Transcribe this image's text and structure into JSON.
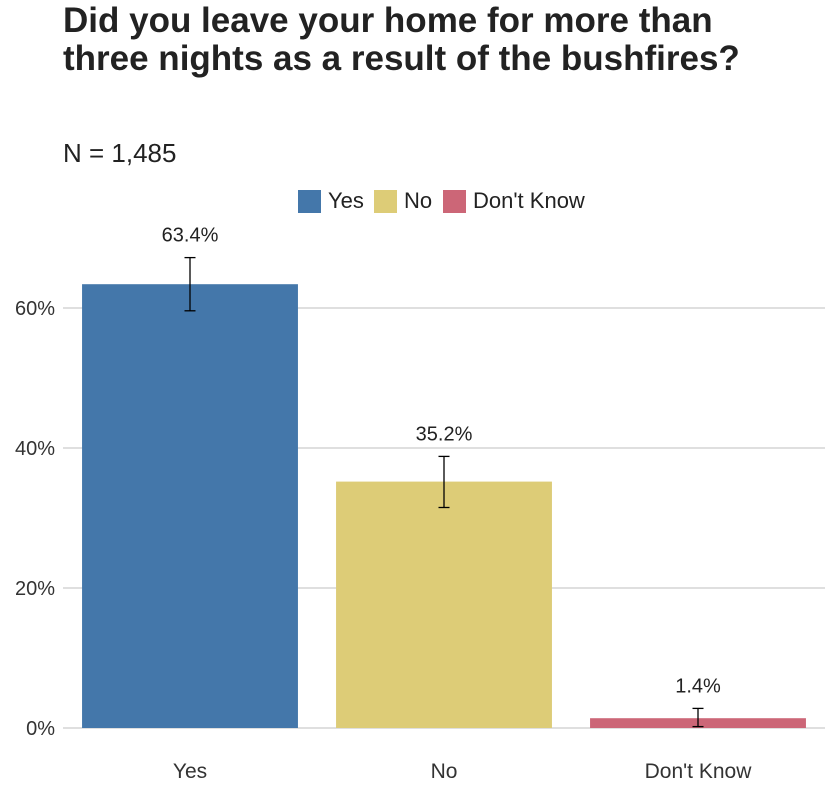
{
  "title": "Did you leave your home for more than three nights as a result of the bushfires?",
  "subtitle": "N = 1,485",
  "legend": [
    {
      "label": "Yes",
      "color": "#4477AA"
    },
    {
      "label": "No",
      "color": "#DDCC77"
    },
    {
      "label": "Don't Know",
      "color": "#CC6677"
    }
  ],
  "chart_data": {
    "type": "bar",
    "title": "Did you leave your home for more than three nights as a result of the bushfires?",
    "subtitle": "N = 1,485",
    "categories": [
      "Yes",
      "No",
      "Don't Know"
    ],
    "values": [
      63.4,
      35.2,
      1.4
    ],
    "value_labels": [
      "63.4%",
      "35.2%",
      "1.4%"
    ],
    "error_bars": [
      {
        "low": 59.6,
        "high": 67.2
      },
      {
        "low": 31.5,
        "high": 38.8
      },
      {
        "low": 0.2,
        "high": 2.8
      }
    ],
    "colors": [
      "#4477AA",
      "#DDCC77",
      "#CC6677"
    ],
    "yticks": [
      0,
      20,
      40,
      60
    ],
    "ytick_labels": [
      "0%",
      "20%",
      "40%",
      "60%"
    ],
    "ylim": [
      0,
      69
    ],
    "grid": "horizontal",
    "legend_position": "top",
    "xlabel": "",
    "ylabel": ""
  }
}
